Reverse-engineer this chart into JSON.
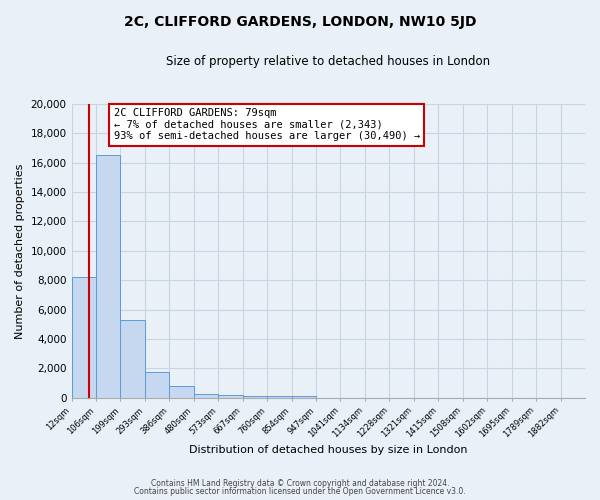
{
  "title": "2C, CLIFFORD GARDENS, LONDON, NW10 5JD",
  "subtitle": "Size of property relative to detached houses in London",
  "xlabel": "Distribution of detached houses by size in London",
  "ylabel": "Number of detached properties",
  "bar_color": "#c5d8f0",
  "bar_edge_color": "#5b9bd5",
  "background_color": "#eaf0f8",
  "grid_color": "#d0d8e8",
  "fig_background_color": "#eaf0f8",
  "annotation_box_color": "#ffffff",
  "annotation_border_color": "#cc0000",
  "vline_color": "#cc0000",
  "annotation_title": "2C CLIFFORD GARDENS: 79sqm",
  "annotation_line1": "← 7% of detached houses are smaller (2,343)",
  "annotation_line2": "93% of semi-detached houses are larger (30,490) →",
  "footer_line1": "Contains HM Land Registry data © Crown copyright and database right 2024.",
  "footer_line2": "Contains public sector information licensed under the Open Government Licence v3.0.",
  "bin_labels": [
    "12sqm",
    "106sqm",
    "199sqm",
    "293sqm",
    "386sqm",
    "480sqm",
    "573sqm",
    "667sqm",
    "760sqm",
    "854sqm",
    "947sqm",
    "1041sqm",
    "1134sqm",
    "1228sqm",
    "1321sqm",
    "1415sqm",
    "1508sqm",
    "1602sqm",
    "1695sqm",
    "1789sqm",
    "1882sqm"
  ],
  "bar_heights": [
    8200,
    16500,
    5300,
    1750,
    800,
    280,
    200,
    130,
    100,
    130,
    0,
    0,
    0,
    0,
    0,
    0,
    0,
    0,
    0,
    0
  ],
  "ylim": [
    0,
    20000
  ],
  "yticks": [
    0,
    2000,
    4000,
    6000,
    8000,
    10000,
    12000,
    14000,
    16000,
    18000,
    20000
  ]
}
